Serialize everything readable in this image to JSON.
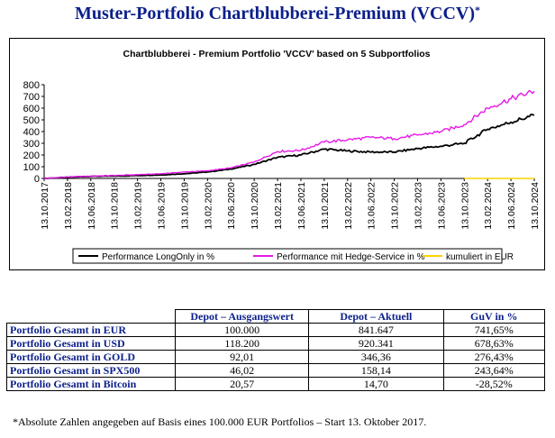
{
  "page_title": "Muster-Portfolio Chartblubberei-Premium (VCCV)",
  "page_title_star": "*",
  "chart_data": {
    "type": "line",
    "title": "Chartblubberei - Premium Portfolio 'VCCV' based on 5 Subportfolios",
    "xlabel": "",
    "ylabel": "",
    "ylim": [
      0,
      800
    ],
    "yticks": [
      0,
      100,
      200,
      300,
      400,
      500,
      600,
      700,
      800
    ],
    "grid": false,
    "legend_position": "bottom",
    "x_dates": [
      "2017-10-13",
      "2018-02-13",
      "2018-06-13",
      "2018-10-13",
      "2019-02-13",
      "2019-06-13",
      "2019-10-13",
      "2020-02-13",
      "2020-06-13",
      "2020-10-13",
      "2021-02-13",
      "2021-06-13",
      "2021-10-13",
      "2022-02-13",
      "2022-06-13",
      "2022-10-13",
      "2023-02-13",
      "2023-06-13",
      "2023-10-13",
      "2024-02-13",
      "2024-06-13",
      "2024-10-13"
    ],
    "x_tick_labels": [
      "13.10.2017",
      "13.02.2018",
      "13.06.2018",
      "13.10.2018",
      "13.02.2019",
      "13.06.2019",
      "13.10.2019",
      "13.02.2020",
      "13.06.2020",
      "13.10.2020",
      "13.02.2021",
      "13.06.2021",
      "13.10.2021",
      "13.02.2022",
      "13.06.2022",
      "13.10.2022",
      "13.02.2023",
      "13.06.2023",
      "13.10.2023",
      "13.02.2024",
      "13.06.2024",
      "13.10.2024"
    ],
    "series": [
      {
        "name": "Performance LongOnly in %",
        "color": "#000000",
        "values": [
          0,
          10,
          18,
          20,
          25,
          30,
          40,
          55,
          80,
          120,
          180,
          200,
          250,
          235,
          225,
          225,
          255,
          275,
          300,
          420,
          480,
          540
        ]
      },
      {
        "name": "Performance mit Hedge-Service in %",
        "color": "#e619e6",
        "values": [
          0,
          12,
          20,
          25,
          32,
          40,
          55,
          65,
          90,
          140,
          230,
          240,
          310,
          330,
          350,
          340,
          370,
          400,
          460,
          600,
          680,
          745
        ]
      },
      {
        "name": "kumuliert in EUR",
        "color": "#ffd400",
        "values": [
          null,
          null,
          null,
          null,
          null,
          null,
          null,
          null,
          null,
          null,
          null,
          null,
          null,
          null,
          null,
          null,
          null,
          null,
          0,
          0,
          0,
          0
        ]
      }
    ]
  },
  "table": {
    "header": [
      "",
      "Depot – Ausgangswert",
      "Depot – Aktuell",
      "GuV in %"
    ],
    "rows": [
      [
        "Portfolio Gesamt in EUR",
        "100.000",
        "841.647",
        "741,65%"
      ],
      [
        "Portfolio Gesamt in USD",
        "118.200",
        "920.341",
        "678,63%"
      ],
      [
        "Portfolio Gesamt in GOLD",
        "92,01",
        "346,36",
        "276,43%"
      ],
      [
        "Portfolio Gesamt in SPX500",
        "46,02",
        "158,14",
        "243,64%"
      ],
      [
        "Portfolio Gesamt in Bitcoin",
        "20,57",
        "14,70",
        "-28,52%"
      ]
    ]
  },
  "footnote": "*Absolute Zahlen angegeben auf Basis eines 100.000 EUR Portfolios – Start 13. Oktober 2017."
}
